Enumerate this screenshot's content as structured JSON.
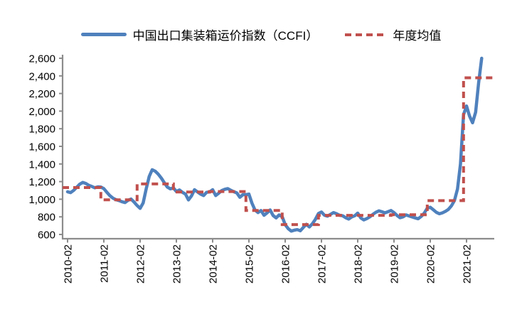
{
  "legend": {
    "position": "top",
    "series1_label": "中国出口集装箱运价指数（CCFI）",
    "series2_label": "年度均值"
  },
  "colors": {
    "ccfi_line": "#4F81BD",
    "annual_avg_line": "#C0504D",
    "axis": "#8C8C8C",
    "text": "#000000",
    "background": "#FFFFFF"
  },
  "chart_data": {
    "type": "line",
    "title": "",
    "xlabel": "",
    "ylabel": "",
    "grid": false,
    "legend_position": "top",
    "x_start": "2010-02",
    "x_end": "2021-07",
    "x_interval": "month",
    "y_axis": {
      "min": 600,
      "max": 2600,
      "tick_step": 200,
      "tick_values": [
        2600,
        2400,
        2200,
        2000,
        1800,
        1600,
        1400,
        1200,
        1000,
        800,
        600
      ],
      "tick_labels": [
        "2,600",
        "2,400",
        "2,200",
        "2,000",
        "1,800",
        "1,600",
        "1,400",
        "1,200",
        "1,000",
        "800",
        "600"
      ]
    },
    "x_axis": {
      "tick_labels": [
        "2010-02",
        "2011-02",
        "2012-02",
        "2013-02",
        "2014-02",
        "2015-02",
        "2016-02",
        "2017-02",
        "2018-02",
        "2019-02",
        "2020-02",
        "2021-02"
      ],
      "tick_label_rotation": -90
    },
    "series": [
      {
        "name": "中国出口集装箱运价指数（CCFI）",
        "style": "solid",
        "color": "#4F81BD",
        "start": "2010-02",
        "values": [
          1085,
          1075,
          1100,
          1135,
          1170,
          1190,
          1180,
          1158,
          1145,
          1130,
          1140,
          1138,
          1120,
          1078,
          1040,
          1012,
          995,
          985,
          972,
          962,
          988,
          1002,
          968,
          928,
          896,
          958,
          1115,
          1258,
          1335,
          1318,
          1285,
          1240,
          1188,
          1138,
          1118,
          1128,
          1088,
          1105,
          1078,
          1058,
          992,
          1038,
          1108,
          1082,
          1058,
          1042,
          1078,
          1082,
          1108,
          1042,
          1068,
          1098,
          1112,
          1120,
          1102,
          1085,
          1072,
          1022,
          1052,
          1052,
          1058,
          955,
          878,
          848,
          872,
          818,
          845,
          878,
          815,
          788,
          822,
          802,
          712,
          665,
          638,
          648,
          655,
          642,
          680,
          715,
          685,
          722,
          772,
          838,
          855,
          818,
          808,
          828,
          848,
          835,
          818,
          812,
          790,
          775,
          798,
          812,
          842,
          788,
          765,
          780,
          800,
          828,
          852,
          868,
          858,
          845,
          858,
          872,
          848,
          815,
          790,
          800,
          822,
          810,
          798,
          788,
          778,
          805,
          842,
          898,
          908,
          880,
          852,
          835,
          845,
          862,
          885,
          925,
          985,
          1115,
          1400,
          1960,
          2058,
          1942,
          1868,
          1988,
          2320,
          2600
        ]
      },
      {
        "name": "年度均值",
        "style": "dashed-step",
        "color": "#C0504D",
        "annual_averages": [
          {
            "year": 2010,
            "value": 1132
          },
          {
            "year": 2011,
            "value": 993
          },
          {
            "year": 2012,
            "value": 1173
          },
          {
            "year": 2013,
            "value": 1082
          },
          {
            "year": 2014,
            "value": 1087
          },
          {
            "year": 2015,
            "value": 872
          },
          {
            "year": 2016,
            "value": 712
          },
          {
            "year": 2017,
            "value": 817
          },
          {
            "year": 2018,
            "value": 817
          },
          {
            "year": 2019,
            "value": 824
          },
          {
            "year": 2020,
            "value": 984
          },
          {
            "year": 2021,
            "value": 2378
          }
        ]
      }
    ]
  }
}
